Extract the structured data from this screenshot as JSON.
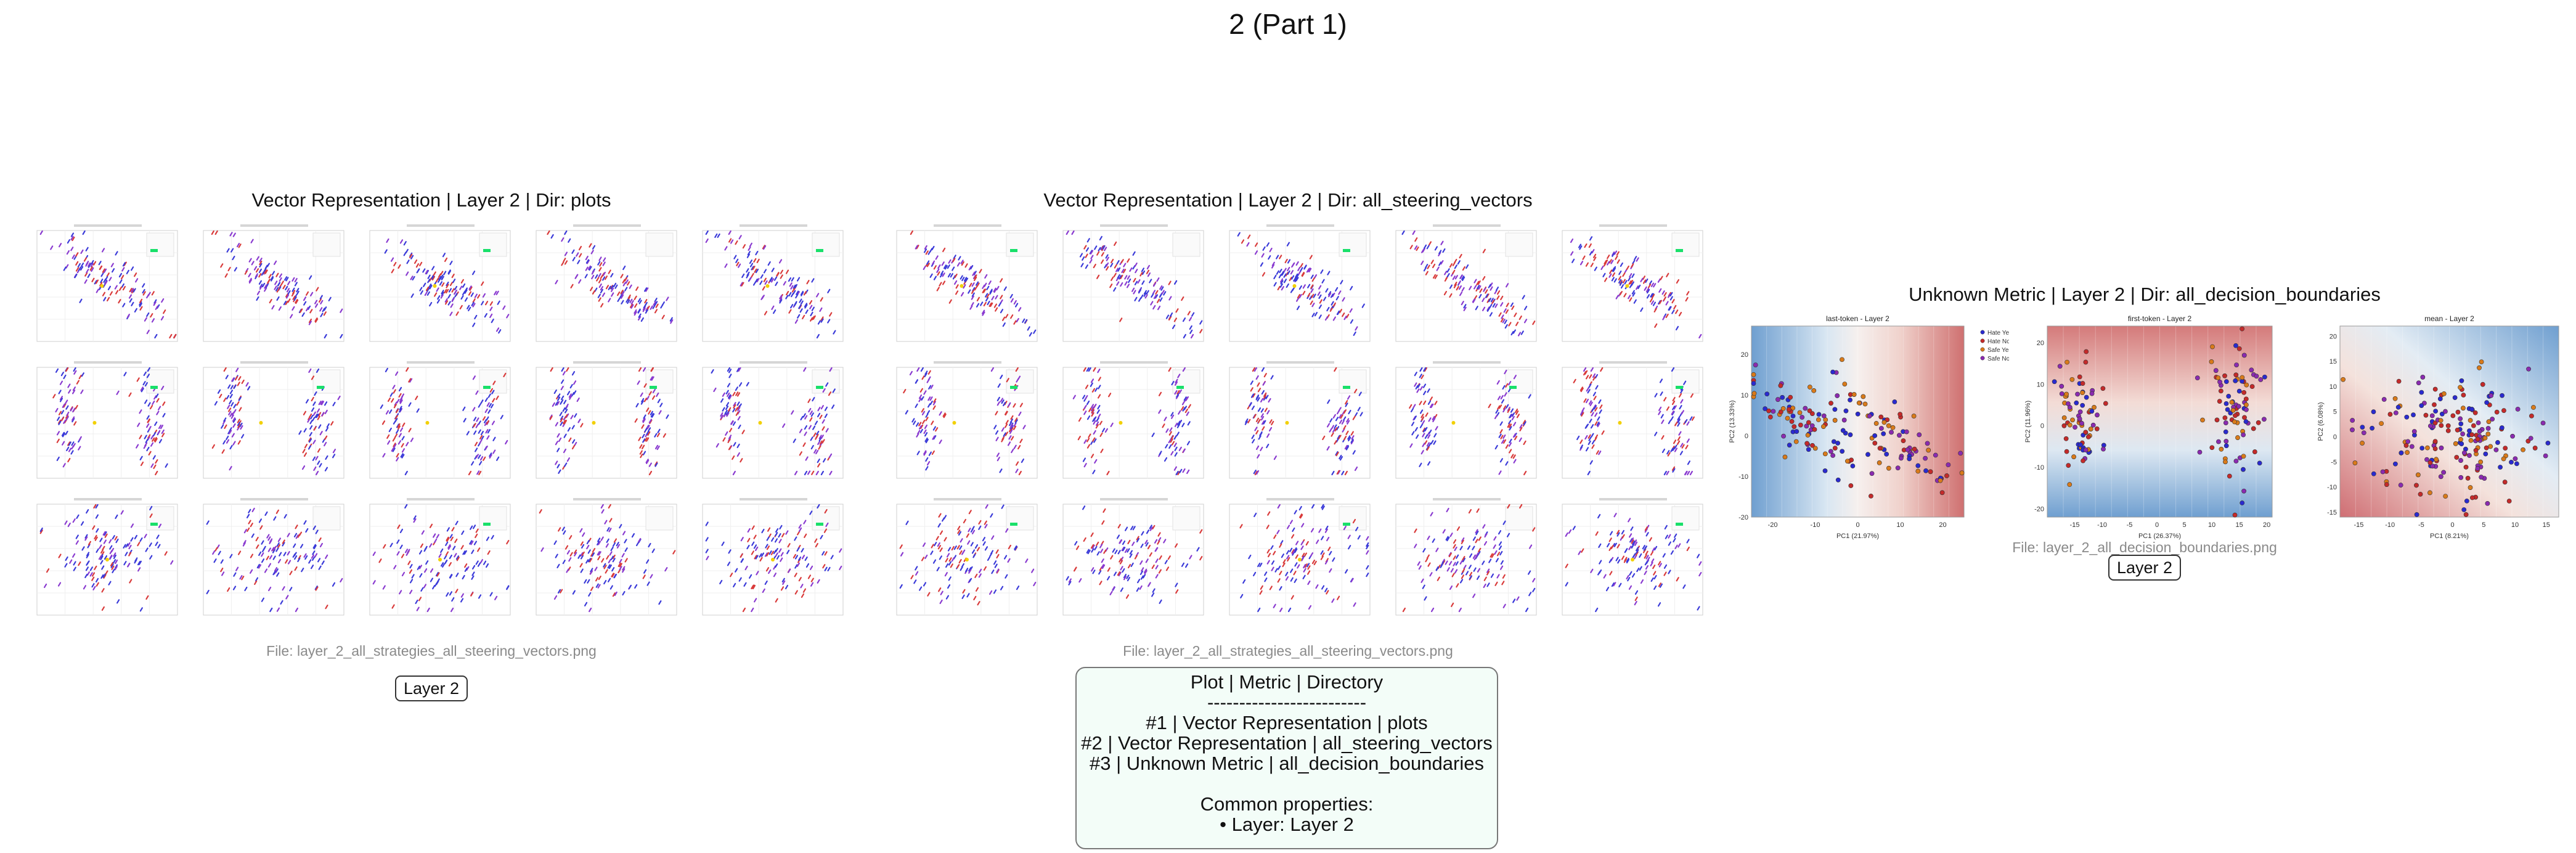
{
  "page": {
    "title": "2 (Part 1)"
  },
  "panels": [
    {
      "title": "Vector Representation | Layer 2 | Dir: plots",
      "file": "File: layer_2_all_strategies_all_steering_vectors.png",
      "badge": "Layer 2"
    },
    {
      "title": "Vector Representation | Layer 2 | Dir: all_steering_vectors",
      "file": "File: layer_2_all_strategies_all_steering_vectors.png",
      "badge": ""
    },
    {
      "title": "Unknown Metric | Layer 2 | Dir: all_decision_boundaries",
      "file": "File: layer_2_all_decision_boundaries.png",
      "badge": "Layer 2"
    }
  ],
  "summary": {
    "header": "Plot | Metric | Directory",
    "divider": "-------------------------",
    "rows": [
      "#1 | Vector Representation | plots",
      "#2 | Vector Representation | all_steering_vectors",
      "#3 | Unknown Metric | all_decision_boundaries"
    ],
    "common_header": "Common properties:",
    "common_items": [
      "• Layer: Layer 2"
    ]
  },
  "colors": {
    "series_a": "#3b3bd9",
    "series_b": "#d93b3b",
    "series_c": "#8a3bd0",
    "vector_yellow": "#f2d000",
    "vector_green": "#19e06a",
    "boundary_blue": "#5b8fc4",
    "boundary_red": "#cc6a70",
    "summary_bg": "#f3fdf8"
  },
  "chart_data": [
    {
      "type": "scatter",
      "grid": {
        "rows": [
          {
            "row_title": "last-token",
            "clusters": [
              {
                "cx": -5,
                "cy": 3,
                "sx": 7,
                "sy": 2.5,
                "angle": -0.7
              },
              {
                "cx": 7,
                "cy": -3,
                "sx": 7,
                "sy": 2.5,
                "angle": -0.7
              }
            ]
          },
          {
            "row_title": "first-token",
            "clusters": [
              {
                "cx": -12,
                "cy": 2,
                "sx": 2,
                "sy": 7,
                "angle": 0
              },
              {
                "cx": 12,
                "cy": -1,
                "sx": 2.5,
                "sy": 7,
                "angle": 0
              }
            ]
          },
          {
            "row_title": "mean",
            "clusters": [
              {
                "cx": 0,
                "cy": 0,
                "sx": 8,
                "sy": 6,
                "angle": 0
              }
            ]
          }
        ],
        "columns": 5,
        "axis_range": {
          "x": [
            -20,
            20
          ],
          "y": [
            -15,
            15
          ]
        }
      }
    },
    {
      "type": "scatter",
      "title": "last-token - Layer 2",
      "xlabel": "PC1 (21.97%)",
      "ylabel": "PC2 (13.33%)",
      "xlim": [
        -25,
        25
      ],
      "ylim": [
        -20,
        27
      ],
      "xticks": [
        -20,
        -10,
        0,
        10,
        20
      ],
      "yticks": [
        -20,
        -10,
        0,
        10,
        20
      ],
      "legend": [
        "Hate Yes",
        "Hate No",
        "Safe Yes",
        "Safe No"
      ],
      "legend_placement": "outside-right",
      "background": "decision-boundary (blue left, red right)"
    },
    {
      "type": "scatter",
      "title": "first-token - Layer 2",
      "xlabel": "PC1 (26.37%)",
      "ylabel": "PC2 (11.96%)",
      "xlim": [
        -20,
        21
      ],
      "ylim": [
        -22,
        24
      ],
      "xticks": [
        -15,
        -10,
        -5,
        0,
        5,
        10,
        15,
        20
      ],
      "yticks": [
        -20,
        -10,
        0,
        10,
        20
      ],
      "background": "decision-boundary (red top, blue bottom)"
    },
    {
      "type": "scatter",
      "title": "mean - Layer 2",
      "xlabel": "PC1 (8.21%)",
      "ylabel": "PC2 (6.08%)",
      "xlim": [
        -18,
        17
      ],
      "ylim": [
        -16,
        22
      ],
      "xticks": [
        -15,
        -10,
        -5,
        0,
        5,
        10,
        15
      ],
      "yticks": [
        -15,
        -10,
        -5,
        0,
        5,
        10,
        15,
        20
      ],
      "background": "decision-boundary (red lower-left, blue upper-right)"
    }
  ]
}
